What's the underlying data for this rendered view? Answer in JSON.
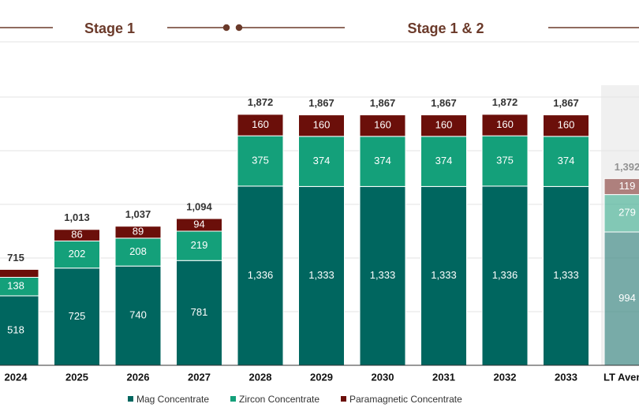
{
  "chart_data": {
    "type": "stacked_bar",
    "stages": [
      "Stage 1",
      "Stage 1 & 2"
    ],
    "categories": [
      "2024",
      "2025",
      "2026",
      "2027",
      "2028",
      "2029",
      "2030",
      "2031",
      "2032",
      "2033",
      "LT Average"
    ],
    "series": [
      {
        "name": "Mag Concentrate",
        "color": "#00665f",
        "values": [
          518,
          725,
          740,
          781,
          1336,
          1333,
          1333,
          1333,
          1336,
          1333,
          994
        ],
        "value_labels": [
          "518",
          "725",
          "740",
          "781",
          "1,336",
          "1,333",
          "1,333",
          "1,333",
          "1,336",
          "1,333",
          "994"
        ]
      },
      {
        "name": "Zircon Concentrate",
        "color": "#14a07a",
        "values": [
          138,
          202,
          208,
          219,
          375,
          374,
          374,
          374,
          375,
          374,
          279
        ]
      },
      {
        "name": "Paramagnetic Concentrate",
        "color": "#6b0f0a",
        "values": [
          59,
          86,
          89,
          94,
          160,
          160,
          160,
          160,
          160,
          160,
          119
        ],
        "value_labels": [
          null,
          "86",
          "89",
          "94",
          "160",
          "160",
          "160",
          "160",
          "160",
          "160",
          "119"
        ]
      }
    ],
    "totals": [
      715,
      1013,
      1037,
      1094,
      1872,
      1867,
      1867,
      1867,
      1872,
      1867,
      1392
    ],
    "total_labels": [
      "715",
      "1,013",
      "1,037",
      "1,094",
      "1,872",
      "1,867",
      "1,867",
      "1,867",
      "1,872",
      "1,867",
      "1,392"
    ],
    "ylim": [
      0,
      2000
    ],
    "yticks": [
      400,
      800,
      1200,
      1600,
      2000
    ],
    "grid": true
  }
}
